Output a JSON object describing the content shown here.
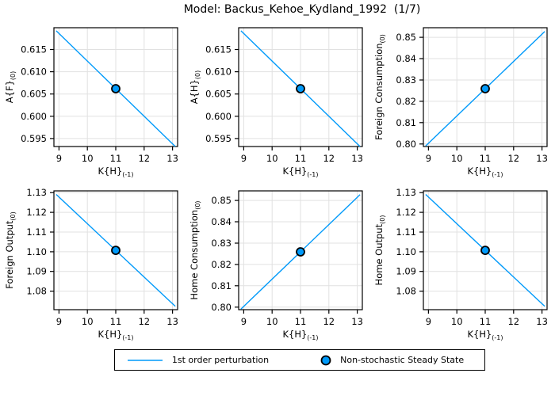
{
  "title": "Model: Backus_Kehoe_Kydland_1992  (1/7)",
  "colors": {
    "line": "#009AFA",
    "marker_fill": "#009AFA",
    "marker_edge": "#000000",
    "grid": "#E1E1E1",
    "frame": "#000000",
    "background": "#FFFFFF"
  },
  "legend": {
    "entries": [
      {
        "type": "line",
        "label": "1st order perturbation"
      },
      {
        "type": "marker",
        "label": "Non-stochastic Steady State"
      }
    ]
  },
  "chart_data": [
    {
      "type": "line",
      "ylabel": "A{F}",
      "ylabel_sub": "(0)",
      "xlabel": "K{H}",
      "xlabel_sub": "(-1)",
      "xlim": [
        8.82,
        13.18
      ],
      "ylim": [
        0.5932,
        0.6199
      ],
      "xticks": [
        9,
        10,
        11,
        12,
        13
      ],
      "yticks": [
        0.595,
        0.6,
        0.605,
        0.61,
        0.615
      ],
      "ydecimals": 3,
      "line": {
        "x": [
          8.9,
          13.1
        ],
        "y": [
          0.6192,
          0.5932
        ]
      },
      "steady_state": {
        "x": 11,
        "y": 0.6062
      }
    },
    {
      "type": "line",
      "ylabel": "A{H}",
      "ylabel_sub": "(0)",
      "xlabel": "K{H}",
      "xlabel_sub": "(-1)",
      "xlim": [
        8.82,
        13.18
      ],
      "ylim": [
        0.5932,
        0.6199
      ],
      "xticks": [
        9,
        10,
        11,
        12,
        13
      ],
      "yticks": [
        0.595,
        0.6,
        0.605,
        0.61,
        0.615
      ],
      "ydecimals": 3,
      "line": {
        "x": [
          8.9,
          13.1
        ],
        "y": [
          0.6192,
          0.5932
        ]
      },
      "steady_state": {
        "x": 11,
        "y": 0.6062
      }
    },
    {
      "type": "line",
      "ylabel": "Foreign Consumption",
      "ylabel_sub": "(0)",
      "xlabel": "K{H}",
      "xlabel_sub": "(-1)",
      "xlim": [
        8.82,
        13.18
      ],
      "ylim": [
        0.7988,
        0.8545
      ],
      "xticks": [
        9,
        10,
        11,
        12,
        13
      ],
      "yticks": [
        0.8,
        0.81,
        0.82,
        0.83,
        0.84,
        0.85
      ],
      "ydecimals": 2,
      "line": {
        "x": [
          8.9,
          13.1
        ],
        "y": [
          0.7991,
          0.8527
        ]
      },
      "steady_state": {
        "x": 11,
        "y": 0.8259
      }
    },
    {
      "type": "line",
      "ylabel": "Foreign Output",
      "ylabel_sub": "(0)",
      "xlabel": "K{H}",
      "xlabel_sub": "(-1)",
      "xlim": [
        8.82,
        13.18
      ],
      "ylim": [
        1.0706,
        1.1309
      ],
      "xticks": [
        9,
        10,
        11,
        12,
        13
      ],
      "yticks": [
        1.08,
        1.09,
        1.1,
        1.11,
        1.12,
        1.13
      ],
      "ydecimals": 2,
      "line": {
        "x": [
          8.9,
          13.1
        ],
        "y": [
          1.1291,
          1.0723
        ]
      },
      "steady_state": {
        "x": 11,
        "y": 1.1007
      }
    },
    {
      "type": "line",
      "ylabel": "Home Consumption",
      "ylabel_sub": "(0)",
      "xlabel": "K{H}",
      "xlabel_sub": "(-1)",
      "xlim": [
        8.82,
        13.18
      ],
      "ylim": [
        0.7988,
        0.8545
      ],
      "xticks": [
        9,
        10,
        11,
        12,
        13
      ],
      "yticks": [
        0.8,
        0.81,
        0.82,
        0.83,
        0.84,
        0.85
      ],
      "ydecimals": 2,
      "line": {
        "x": [
          8.9,
          13.1
        ],
        "y": [
          0.7991,
          0.8527
        ]
      },
      "steady_state": {
        "x": 11,
        "y": 0.8259
      }
    },
    {
      "type": "line",
      "ylabel": "Home Output",
      "ylabel_sub": "(0)",
      "xlabel": "K{H}",
      "xlabel_sub": "(-1)",
      "xlim": [
        8.82,
        13.18
      ],
      "ylim": [
        1.0706,
        1.1309
      ],
      "xticks": [
        9,
        10,
        11,
        12,
        13
      ],
      "yticks": [
        1.08,
        1.09,
        1.1,
        1.11,
        1.12,
        1.13
      ],
      "ydecimals": 2,
      "line": {
        "x": [
          8.9,
          13.1
        ],
        "y": [
          1.1291,
          1.0723
        ]
      },
      "steady_state": {
        "x": 11,
        "y": 1.1007
      }
    }
  ]
}
